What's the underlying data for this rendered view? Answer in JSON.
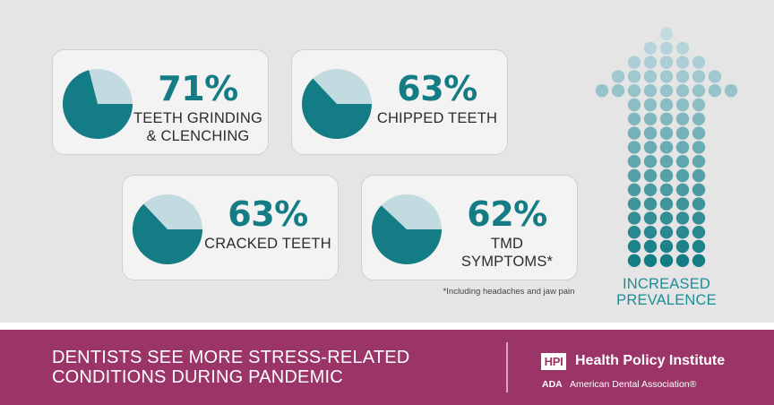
{
  "colors": {
    "teal": "#137c85",
    "light_teal": "#c1dbe0",
    "panel": "#e5e5e6",
    "card": "#f3f3f3",
    "footer": "#9b3467"
  },
  "chart_data": {
    "type": "pie",
    "cards": [
      {
        "value": 71,
        "label": "71%",
        "name": "TEETH GRINDING\n& CLENCHING"
      },
      {
        "value": 63,
        "label": "63%",
        "name": "CHIPPED TEETH"
      },
      {
        "value": 63,
        "label": "63%",
        "name": "CRACKED TEETH"
      },
      {
        "value": 62,
        "label": "62%",
        "name": "TMD\nSYMPTOMS*"
      }
    ],
    "footnote": "*Including headaches and jaw pain"
  },
  "arrow": {
    "label": "INCREASED\nPREVALENCE",
    "icon": "dotted-up-arrow-icon"
  },
  "footer": {
    "headline": "DENTISTS SEE MORE STRESS-RELATED\nCONDITIONS DURING PANDEMIC",
    "hpi_badge": "HPI",
    "hpi_name": "Health Policy Institute",
    "ada_abbrev": "ADA",
    "ada_name": "American Dental Association®"
  }
}
